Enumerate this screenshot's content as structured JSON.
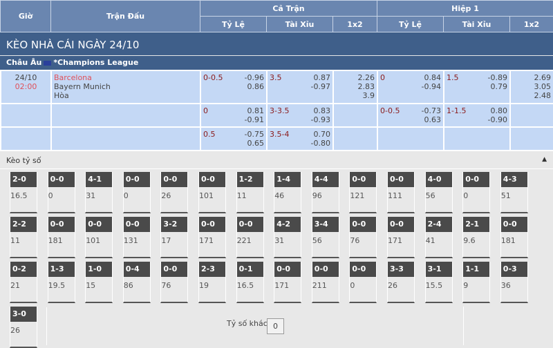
{
  "header": {
    "gio": "Giờ",
    "tran_dau": "Trận Đấu",
    "ca_tran": "Cả Trận",
    "hiep1": "Hiệp 1",
    "ty_le": "Tỷ Lệ",
    "tai_xiu": "Tài Xỉu",
    "x12": "1x2"
  },
  "title": "KÈO NHÀ CÁI NGÀY 24/10",
  "league": {
    "region": "Châu Âu",
    "name": "*Champions League"
  },
  "match": {
    "date": "24/10",
    "time": "02:00",
    "home": "Barcelona",
    "away": "Bayern Munich",
    "draw": "Hòa"
  },
  "rows": [
    {
      "ft_hdp": "0-0.5",
      "ft_hdp_o": [
        "-0.96",
        "0.86"
      ],
      "ft_ou": "3.5",
      "ft_ou_o": [
        "0.87",
        "-0.97"
      ],
      "ft_1x2": [
        "2.26",
        "2.83",
        "3.9"
      ],
      "h1_hdp": "0",
      "h1_hdp_o": [
        "0.84",
        "-0.94"
      ],
      "h1_ou": "1.5",
      "h1_ou_o": [
        "-0.89",
        "0.79"
      ],
      "h1_1x2": [
        "2.69",
        "3.05",
        "2.48"
      ]
    },
    {
      "ft_hdp": "0",
      "ft_hdp_o": [
        "0.81",
        "-0.91"
      ],
      "ft_ou": "3-3.5",
      "ft_ou_o": [
        "0.83",
        "-0.93"
      ],
      "h1_hdp": "0-0.5",
      "h1_hdp_o": [
        "-0.73",
        "0.63"
      ],
      "h1_ou": "1-1.5",
      "h1_ou_o": [
        "0.80",
        "-0.90"
      ]
    },
    {
      "ft_hdp": "0.5",
      "ft_hdp_o": [
        "-0.75",
        "0.65"
      ],
      "ft_ou": "3.5-4",
      "ft_ou_o": [
        "0.70",
        "-0.80"
      ]
    }
  ],
  "correct_score": {
    "label": "Kèo tỷ số",
    "other_label": "Tỷ số khác",
    "other_value": "0",
    "cards": [
      [
        "2-0",
        "16.5"
      ],
      [
        "0-0",
        "0"
      ],
      [
        "4-1",
        "31"
      ],
      [
        "0-0",
        "0"
      ],
      [
        "0-0",
        "26"
      ],
      [
        "0-0",
        "101"
      ],
      [
        "1-2",
        "11"
      ],
      [
        "1-4",
        "46"
      ],
      [
        "4-4",
        "96"
      ],
      [
        "0-0",
        "121"
      ],
      [
        "0-0",
        "111"
      ],
      [
        "4-0",
        "56"
      ],
      [
        "0-0",
        "0"
      ],
      [
        "4-3",
        "51"
      ],
      [
        "2-2",
        "11"
      ],
      [
        "0-0",
        "181"
      ],
      [
        "0-0",
        "101"
      ],
      [
        "0-0",
        "131"
      ],
      [
        "3-2",
        "17"
      ],
      [
        "0-0",
        "171"
      ],
      [
        "0-0",
        "221"
      ],
      [
        "4-2",
        "31"
      ],
      [
        "3-4",
        "56"
      ],
      [
        "0-0",
        "76"
      ],
      [
        "0-0",
        "171"
      ],
      [
        "2-4",
        "41"
      ],
      [
        "2-1",
        "9.6"
      ],
      [
        "0-0",
        "181"
      ],
      [
        "0-2",
        "21"
      ],
      [
        "1-3",
        "19.5"
      ],
      [
        "1-0",
        "15"
      ],
      [
        "0-4",
        "86"
      ],
      [
        "0-0",
        "76"
      ],
      [
        "2-3",
        "19"
      ],
      [
        "0-1",
        "16.5"
      ],
      [
        "0-0",
        "171"
      ],
      [
        "0-0",
        "211"
      ],
      [
        "0-0",
        "0"
      ],
      [
        "3-3",
        "26"
      ],
      [
        "3-1",
        "15.5"
      ],
      [
        "1-1",
        "9"
      ],
      [
        "0-3",
        "36"
      ],
      [
        "3-0",
        "26"
      ]
    ]
  }
}
